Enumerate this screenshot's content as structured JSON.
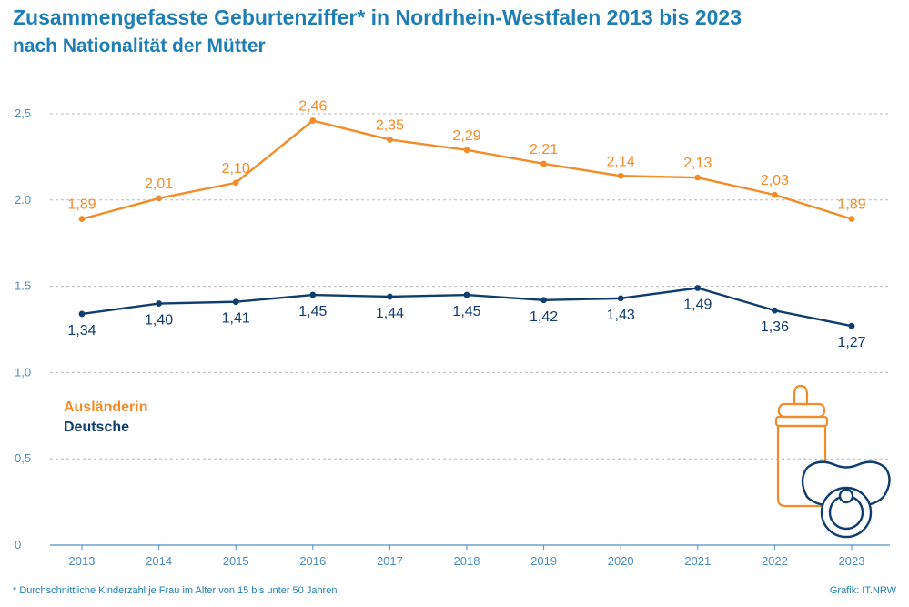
{
  "title": "Zusammengefasste Geburtenziffer* in Nordrhein-Westfalen 2013 bis 2023",
  "subtitle": "nach Nationalität der Mütter",
  "footnote": "*  Durchschnittliche Kinderzahl je Frau im Alter von 15 bis unter 50 Jahren",
  "source": "Grafik: IT.NRW",
  "colors": {
    "orange": "#f28c28",
    "navy": "#0f3e6e",
    "axis": "#4a8fc0",
    "grid": "#b9b9b9"
  },
  "icons": [
    "baby-bottle-icon",
    "pacifier-icon"
  ],
  "chart_data": {
    "type": "line",
    "x": [
      "2013",
      "2014",
      "2015",
      "2016",
      "2017",
      "2018",
      "2019",
      "2020",
      "2021",
      "2022",
      "2023"
    ],
    "ylim": [
      0,
      2.5
    ],
    "yticks": [
      "0",
      "0,5",
      "1,0",
      "1.5",
      "2.0",
      "2,5"
    ],
    "grid": true,
    "legend_position": "left",
    "series": [
      {
        "name": "Ausländerin",
        "color": "#f28c28",
        "values": [
          1.89,
          2.01,
          2.1,
          2.46,
          2.35,
          2.29,
          2.21,
          2.14,
          2.13,
          2.03,
          1.89
        ],
        "labels": [
          "1,89",
          "2,01",
          "2,10",
          "2,46",
          "2,35",
          "2,29",
          "2,21",
          "2,14",
          "2,13",
          "2,03",
          "1,89"
        ]
      },
      {
        "name": "Deutsche",
        "color": "#0f3e6e",
        "values": [
          1.34,
          1.4,
          1.41,
          1.45,
          1.44,
          1.45,
          1.42,
          1.43,
          1.49,
          1.36,
          1.27
        ],
        "labels": [
          "1,34",
          "1,40",
          "1,41",
          "1,45",
          "1,44",
          "1,45",
          "1,42",
          "1,43",
          "1,49",
          "1,36",
          "1,27"
        ]
      }
    ]
  }
}
